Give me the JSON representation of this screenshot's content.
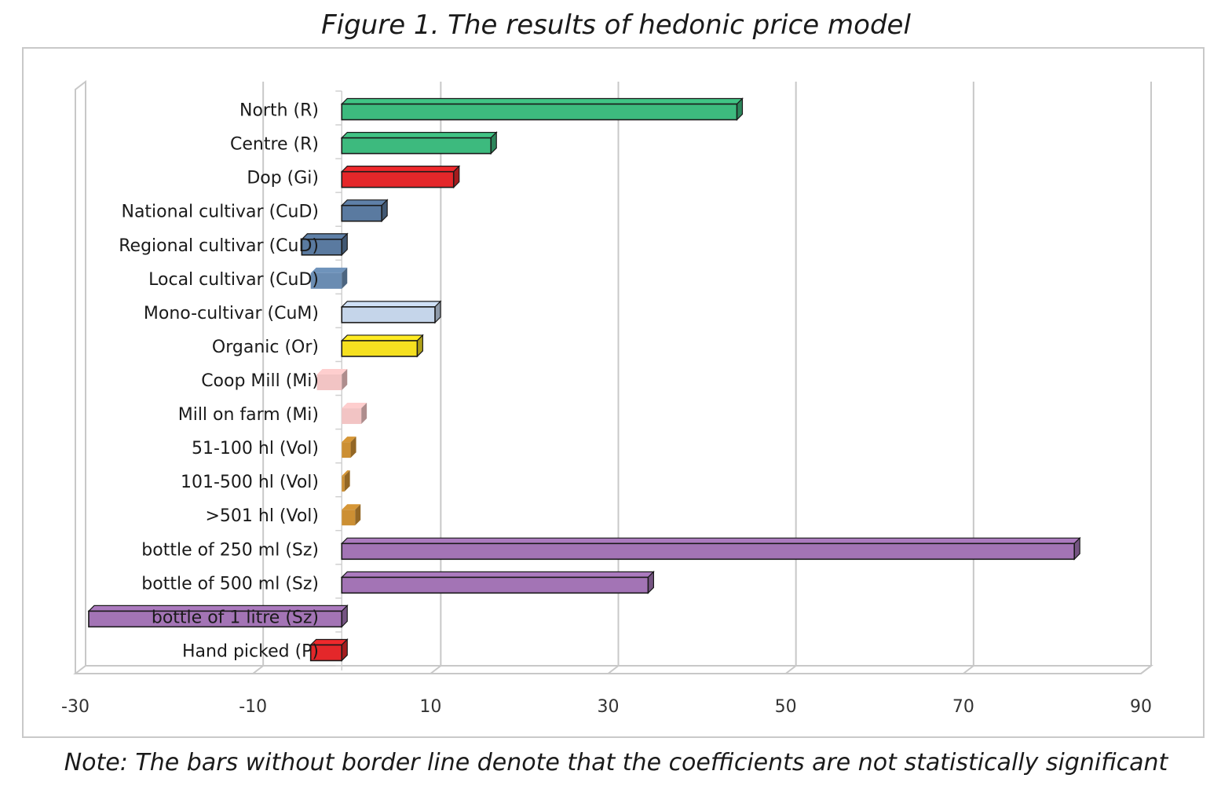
{
  "title": "Figure 1. The results of hedonic price model",
  "note": "Note: The bars without border line denote that the coefficients are not statistically significant",
  "chart_data": {
    "type": "bar",
    "orientation": "horizontal",
    "style": "3d",
    "title": "Figure 1. The results of hedonic price model",
    "xlabel": "",
    "ylabel": "",
    "xlim": [
      -30,
      90
    ],
    "xticks": [
      -30,
      -10,
      10,
      30,
      50,
      70,
      90
    ],
    "grid": true,
    "categories": [
      "North (R)",
      "Centre (R)",
      "Dop (Gi)",
      "National cultivar (CuD)",
      "Regional cultivar (CuD)",
      "Local cultivar (CuD)",
      "Mono-cultivar (CuM)",
      "Organic (Or)",
      "Coop Mill (Mi)",
      "Mill on farm (Mi)",
      "51-100 hl (Vol)",
      "101-500 hl (Vol)",
      ">501 hl (Vol)",
      "bottle of 250 ml (Sz)",
      "bottle of 500 ml (Sz)",
      "bottle of 1 litre (Sz)",
      "Hand picked (P)"
    ],
    "values": [
      44.5,
      16.8,
      12.6,
      4.5,
      -4.5,
      -3.5,
      10.5,
      8.5,
      -2.8,
      2.2,
      1.0,
      0.3,
      1.5,
      82.5,
      34.5,
      -28.5,
      -3.5
    ],
    "significant": [
      true,
      true,
      true,
      true,
      true,
      false,
      true,
      true,
      false,
      false,
      false,
      false,
      false,
      true,
      true,
      true,
      true
    ],
    "colors": [
      "#3dba7e",
      "#3dba7e",
      "#e4272a",
      "#5a7aa0",
      "#5a7aa0",
      "#6a8cb2",
      "#c5d5ea",
      "#f5e020",
      "#f2c4c4",
      "#f2c4c4",
      "#cc8f33",
      "#cc8f33",
      "#cc8f33",
      "#a374b5",
      "#a374b5",
      "#a374b5",
      "#e4272a"
    ]
  }
}
